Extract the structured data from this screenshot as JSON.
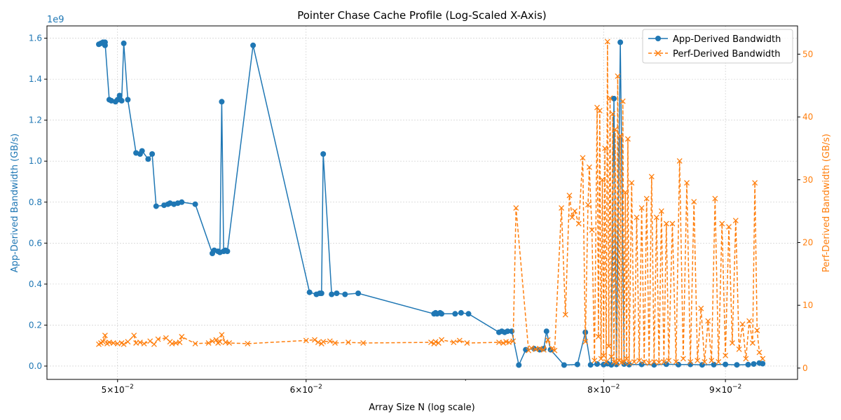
{
  "chart_data": {
    "type": "line",
    "title": "Pointer Chase Cache Profile (Log-Scaled X-Axis)",
    "xlabel": "Array Size N (log scale)",
    "ylabel_left": "App-Derived Bandwidth (GB/s)",
    "ylabel_right": "Perf-Derived Bandwidth (GB/s)",
    "x_scale": "log",
    "xlim": [
      0.0467,
      0.0965
    ],
    "ylim_left": [
      -65000000.0,
      1660000000.0
    ],
    "ylim_right": [
      -1.8,
      54.5
    ],
    "left_offset_text": "1e9",
    "x_ticks": [
      {
        "value": 0.05,
        "mantissa": "5",
        "exponent": "−2"
      },
      {
        "value": 0.06,
        "mantissa": "6",
        "exponent": "−2"
      },
      {
        "value": 0.08,
        "mantissa": "8",
        "exponent": "−2"
      },
      {
        "value": 0.09,
        "mantissa": "9",
        "exponent": "−2"
      }
    ],
    "y_ticks_left": [
      {
        "value": 0.0,
        "label": "0.0"
      },
      {
        "value": 200000000.0,
        "label": "0.2"
      },
      {
        "value": 400000000.0,
        "label": "0.4"
      },
      {
        "value": 600000000.0,
        "label": "0.6"
      },
      {
        "value": 800000000.0,
        "label": "0.8"
      },
      {
        "value": 1000000000.0,
        "label": "1.0"
      },
      {
        "value": 1200000000.0,
        "label": "1.2"
      },
      {
        "value": 1400000000.0,
        "label": "1.4"
      },
      {
        "value": 1600000000.0,
        "label": "1.6"
      }
    ],
    "y_ticks_right": [
      {
        "value": 0,
        "label": "0"
      },
      {
        "value": 10,
        "label": "10"
      },
      {
        "value": 20,
        "label": "20"
      },
      {
        "value": 30,
        "label": "30"
      },
      {
        "value": 40,
        "label": "40"
      },
      {
        "value": 50,
        "label": "50"
      }
    ],
    "grid": true,
    "legend_position": "top-right",
    "series": [
      {
        "name": "App-Derived Bandwidth",
        "axis": "left",
        "color": "#1f77b4",
        "marker": "circle",
        "linestyle": "solid",
        "x": [
          0.0491,
          0.0492,
          0.0493,
          0.0494,
          0.0494,
          0.0496,
          0.0497,
          0.0499,
          0.05,
          0.0501,
          0.0502,
          0.0503,
          0.0505,
          0.0509,
          0.0511,
          0.0512,
          0.0515,
          0.0517,
          0.0519,
          0.0523,
          0.0525,
          0.0526,
          0.0528,
          0.053,
          0.0532,
          0.0539,
          0.0548,
          0.0549,
          0.0551,
          0.0552,
          0.0553,
          0.0554,
          0.0555,
          0.0556,
          0.057,
          0.0602,
          0.0606,
          0.0608,
          0.0609,
          0.061,
          0.0615,
          0.0618,
          0.0623,
          0.0631,
          0.0679,
          0.068,
          0.0681,
          0.0683,
          0.0684,
          0.0693,
          0.0697,
          0.0702,
          0.0723,
          0.0725,
          0.0727,
          0.0729,
          0.0732,
          0.0737,
          0.0742,
          0.0748,
          0.0752,
          0.0755,
          0.0757,
          0.076,
          0.077,
          0.078,
          0.0786,
          0.079,
          0.0795,
          0.08,
          0.0803,
          0.0806,
          0.0808,
          0.081,
          0.0813,
          0.0816,
          0.082,
          0.083,
          0.084,
          0.085,
          0.086,
          0.087,
          0.088,
          0.089,
          0.09,
          0.091,
          0.092,
          0.0925,
          0.093,
          0.0933
        ],
        "values": [
          1570000000.0,
          1575000000.0,
          1580000000.0,
          1565000000.0,
          1580000000.0,
          1300000000.0,
          1295000000.0,
          1290000000.0,
          1300000000.0,
          1320000000.0,
          1295000000.0,
          1575000000.0,
          1300000000.0,
          1040000000.0,
          1035000000.0,
          1050000000.0,
          1010000000.0,
          1035000000.0,
          780000000.0,
          785000000.0,
          790000000.0,
          795000000.0,
          790000000.0,
          795000000.0,
          800000000.0,
          790000000.0,
          550000000.0,
          565000000.0,
          560000000.0,
          555000000.0,
          1290000000.0,
          560000000.0,
          565000000.0,
          560000000.0,
          1565000000.0,
          360000000.0,
          350000000.0,
          355000000.0,
          355000000.0,
          1035000000.0,
          350000000.0,
          355000000.0,
          350000000.0,
          355000000.0,
          255000000.0,
          260000000.0,
          255000000.0,
          260000000.0,
          255000000.0,
          255000000.0,
          260000000.0,
          255000000.0,
          165000000.0,
          170000000.0,
          165000000.0,
          170000000.0,
          170000000.0,
          5000000.0,
          80000000.0,
          85000000.0,
          80000000.0,
          85000000.0,
          170000000.0,
          80000000.0,
          5000000.0,
          8000000.0,
          165000000.0,
          6000000.0,
          10000000.0,
          7000000.0,
          12000000.0,
          6000000.0,
          1305000000.0,
          8000000.0,
          1580000000.0,
          10000000.0,
          7000000.0,
          8000000.0,
          6000000.0,
          9000000.0,
          7000000.0,
          8000000.0,
          6000000.0,
          7000000.0,
          8000000.0,
          6000000.0,
          7000000.0,
          10000000.0,
          15000000.0,
          12000000.0
        ]
      },
      {
        "name": "Perf-Derived Bandwidth",
        "axis": "right",
        "color": "#ff7f0e",
        "marker": "x",
        "linestyle": "dashed",
        "x": [
          0.0491,
          0.0492,
          0.0493,
          0.0494,
          0.0495,
          0.0496,
          0.0498,
          0.05,
          0.0502,
          0.0503,
          0.0505,
          0.0508,
          0.0509,
          0.0511,
          0.0513,
          0.0516,
          0.0518,
          0.052,
          0.0524,
          0.0526,
          0.0527,
          0.0529,
          0.0531,
          0.0532,
          0.0539,
          0.0546,
          0.0548,
          0.055,
          0.0551,
          0.0552,
          0.0553,
          0.0555,
          0.0557,
          0.0567,
          0.06,
          0.0605,
          0.0607,
          0.0609,
          0.061,
          0.0614,
          0.0617,
          0.0625,
          0.0634,
          0.0677,
          0.0679,
          0.068,
          0.0682,
          0.0684,
          0.0692,
          0.0696,
          0.0701,
          0.0723,
          0.0726,
          0.0728,
          0.073,
          0.0733,
          0.0735,
          0.0744,
          0.0746,
          0.0749,
          0.0752,
          0.0755,
          0.0758,
          0.0761,
          0.0763,
          0.0768,
          0.0771,
          0.0774,
          0.0776,
          0.0778,
          0.0781,
          0.0784,
          0.0786,
          0.0788,
          0.0789,
          0.0791,
          0.0793,
          0.0795,
          0.0796,
          0.0797,
          0.0798,
          0.0799,
          0.08,
          0.0801,
          0.0802,
          0.0803,
          0.0804,
          0.0805,
          0.0806,
          0.0807,
          0.0808,
          0.0809,
          0.081,
          0.0811,
          0.0812,
          0.0813,
          0.0814,
          0.0815,
          0.0816,
          0.0817,
          0.0818,
          0.0819,
          0.082,
          0.0822,
          0.0824,
          0.0826,
          0.0828,
          0.083,
          0.0832,
          0.0834,
          0.0836,
          0.0838,
          0.084,
          0.0842,
          0.0844,
          0.0846,
          0.0848,
          0.085,
          0.0852,
          0.0855,
          0.0858,
          0.0861,
          0.0864,
          0.0867,
          0.087,
          0.0873,
          0.0876,
          0.0879,
          0.0882,
          0.0885,
          0.0888,
          0.0891,
          0.0894,
          0.0897,
          0.09,
          0.0903,
          0.0906,
          0.0909,
          0.0912,
          0.0915,
          0.0918,
          0.0921,
          0.0924,
          0.0926,
          0.0928,
          0.093,
          0.0933
        ],
        "values": [
          3.8,
          4.0,
          4.2,
          5.2,
          3.9,
          4.1,
          4.0,
          3.9,
          4.0,
          3.8,
          4.2,
          5.2,
          4.0,
          4.1,
          3.9,
          4.3,
          3.8,
          4.6,
          4.8,
          4.2,
          3.9,
          4.0,
          4.1,
          5.0,
          3.9,
          4.0,
          4.3,
          4.5,
          4.0,
          4.2,
          5.3,
          4.1,
          4.0,
          3.9,
          4.4,
          4.5,
          4.1,
          3.9,
          4.2,
          4.3,
          4.0,
          4.1,
          4.0,
          4.1,
          3.9,
          4.2,
          4.0,
          4.5,
          4.1,
          4.4,
          4.0,
          4.1,
          4.0,
          4.2,
          4.1,
          4.3,
          25.5,
          2.8,
          3.2,
          3.0,
          3.1,
          2.9,
          4.5,
          3.1,
          2.8,
          25.5,
          8.5,
          27.5,
          24.0,
          25.0,
          23.0,
          33.5,
          4.2,
          26.0,
          32.0,
          22.0,
          1.2,
          41.5,
          5.0,
          41.0,
          1.5,
          30.0,
          2.0,
          35.0,
          1.0,
          52.0,
          3.5,
          43.0,
          1.8,
          40.5,
          1.0,
          38.0,
          0.8,
          46.5,
          1.2,
          37.0,
          0.9,
          42.5,
          1.0,
          28.0,
          1.5,
          36.5,
          0.8,
          29.5,
          1.0,
          24.0,
          1.2,
          25.5,
          1.0,
          27.0,
          0.8,
          30.5,
          1.0,
          24.0,
          0.9,
          25.0,
          1.0,
          23.0,
          1.2,
          23.0,
          1.0,
          33.0,
          1.5,
          29.5,
          1.0,
          26.5,
          1.2,
          9.5,
          1.0,
          7.5,
          1.2,
          27.0,
          1.0,
          23.0,
          2.0,
          22.5,
          4.0,
          23.5,
          3.0,
          7.0,
          1.5,
          7.5,
          4.0,
          29.5,
          6.0,
          2.5,
          1.5
        ]
      }
    ]
  }
}
